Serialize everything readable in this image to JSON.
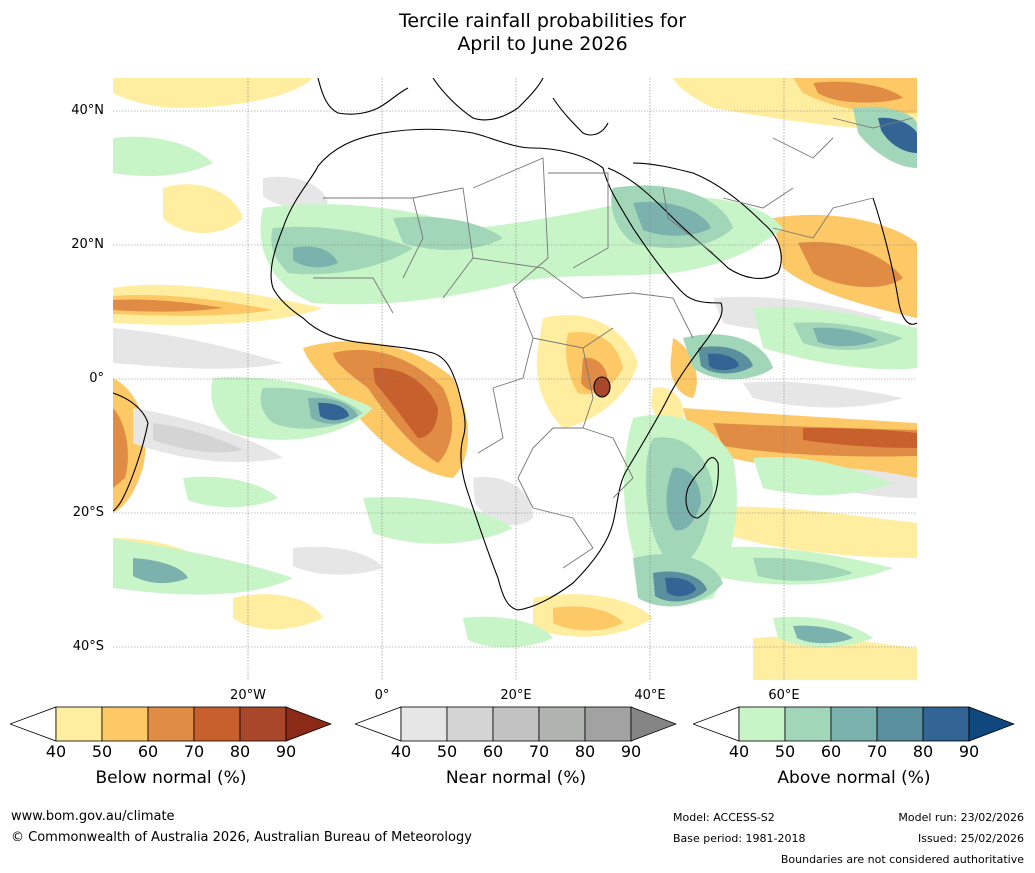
{
  "title": {
    "line1": "Tercile rainfall probabilities for",
    "line2": "April to June 2026"
  },
  "lat_labels": [
    "40°N",
    "20°N",
    "0°",
    "20°S",
    "40°S"
  ],
  "lon_labels": [
    "20°W",
    "0°",
    "20°E",
    "40°E",
    "60°E"
  ],
  "colorbars": [
    {
      "label": "Below normal (%)",
      "ticks": [
        "40",
        "50",
        "60",
        "70",
        "80",
        "90"
      ],
      "colors": [
        "#ffeda0",
        "#fdc866",
        "#e08c44",
        "#c8602d",
        "#a8472a"
      ],
      "end_color": "#8b2a17"
    },
    {
      "label": "Near normal (%)",
      "ticks": [
        "40",
        "50",
        "60",
        "70",
        "80",
        "90"
      ],
      "colors": [
        "#e6e6e6",
        "#d4d4d4",
        "#c2c2c2",
        "#b0b3af",
        "#a2a2a2"
      ],
      "end_color": "#858585"
    },
    {
      "label": "Above normal (%)",
      "ticks": [
        "40",
        "50",
        "60",
        "70",
        "80",
        "90"
      ],
      "colors": [
        "#c8f5c8",
        "#a2d6b8",
        "#7bb2ae",
        "#5a8f9e",
        "#326496"
      ],
      "end_color": "#0f477f"
    }
  ],
  "footer": {
    "website": "www.bom.gov.au/climate",
    "copyright": "© Commonwealth of Australia 2026, Australian Bureau of Meteorology",
    "model": "Model: ACCESS-S2",
    "base_period": "Base period: 1981-2018",
    "model_run": "Model run: 23/02/2026",
    "issued": "Issued: 25/02/2026",
    "disclaimer": "Boundaries are not considered authoritative"
  }
}
